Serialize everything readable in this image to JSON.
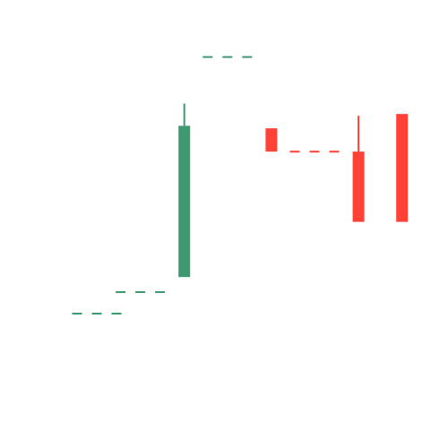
{
  "chart_data": {
    "type": "candlestick",
    "title": "",
    "xlabel": "",
    "ylabel": "",
    "axes_visible": false,
    "grid": false,
    "legend": "none",
    "colors": {
      "up": "#3d9970",
      "down": "#ff4136",
      "background": "#ffffff"
    },
    "ylim": [
      0,
      100
    ],
    "candles": [
      {
        "index": 0,
        "open": 25.0,
        "high": 25.0,
        "low": 25.0,
        "close": 25.0,
        "style": "flat",
        "direction": "up"
      },
      {
        "index": 1,
        "open": 31.0,
        "high": 31.0,
        "low": 31.0,
        "close": 31.0,
        "style": "flat",
        "direction": "up"
      },
      {
        "index": 2,
        "open": 35.2,
        "high": 83.6,
        "low": 35.2,
        "close": 77.4,
        "style": "body",
        "direction": "up"
      },
      {
        "index": 3,
        "open": 96.6,
        "high": 96.6,
        "low": 96.6,
        "close": 96.6,
        "style": "flat",
        "direction": "up"
      },
      {
        "index": 4,
        "open": 76.7,
        "high": 76.7,
        "low": 70.2,
        "close": 70.2,
        "style": "body",
        "direction": "down"
      },
      {
        "index": 5,
        "open": 70.2,
        "high": 70.2,
        "low": 70.2,
        "close": 70.2,
        "style": "flat",
        "direction": "down"
      },
      {
        "index": 6,
        "open": 70.2,
        "high": 80.2,
        "low": 50.6,
        "close": 50.6,
        "style": "body",
        "direction": "down"
      },
      {
        "index": 7,
        "open": 80.7,
        "high": 80.7,
        "low": 50.6,
        "close": 50.6,
        "style": "body",
        "direction": "down"
      }
    ]
  }
}
